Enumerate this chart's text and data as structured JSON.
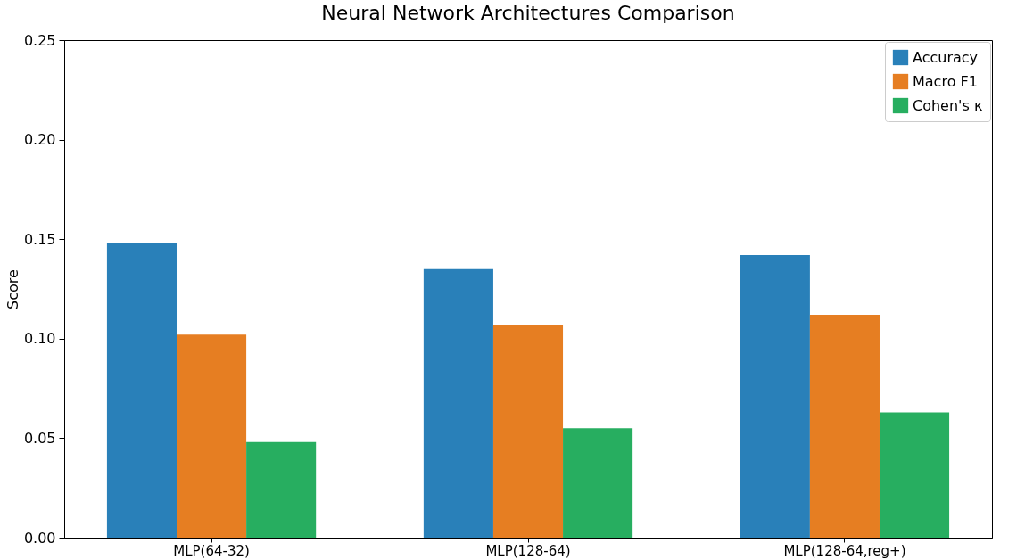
{
  "chart_data": {
    "type": "bar",
    "title": "Neural Network Architectures Comparison",
    "ylabel": "Score",
    "categories": [
      "MLP(64-32)",
      "MLP(128-64)",
      "MLP(128-64,reg+)"
    ],
    "series": [
      {
        "name": "Accuracy",
        "color": "#2980b9",
        "values": [
          0.148,
          0.135,
          0.142
        ]
      },
      {
        "name": "Macro F1",
        "color": "#e67e22",
        "values": [
          0.102,
          0.107,
          0.112
        ]
      },
      {
        "name": "Cohen's κ",
        "color": "#27ae60",
        "values": [
          0.048,
          0.055,
          0.063
        ]
      }
    ],
    "ylim": [
      0,
      0.25
    ],
    "yticks": [
      {
        "value": 0,
        "label": "0.00"
      },
      0.05,
      {
        "value": 0.1,
        "label": "0.10"
      },
      0.15,
      {
        "value": 0.2,
        "label": "0.20"
      },
      0.25
    ],
    "grid": false,
    "legend": "top right"
  }
}
